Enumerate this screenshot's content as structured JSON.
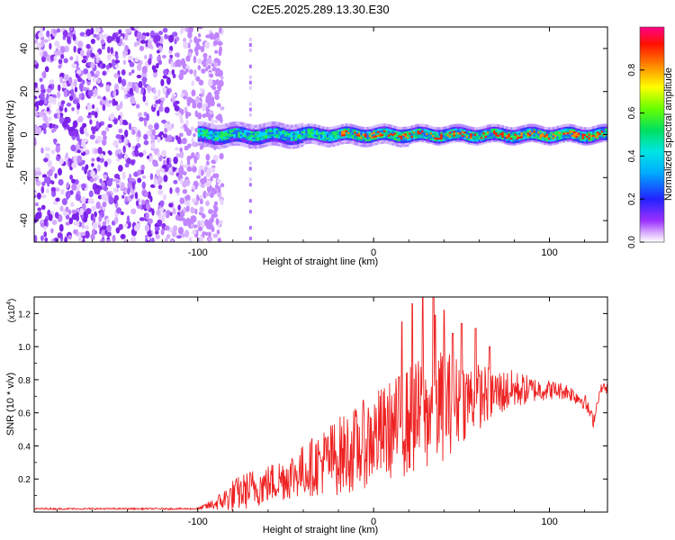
{
  "title": "C2E5.2025.289.13.30.E30",
  "chart_data": [
    {
      "type": "heatmap",
      "xlabel": "Height of straight line (km)",
      "ylabel": "Frequency (Hz)",
      "xlim": [
        -193,
        133
      ],
      "ylim": [
        -50,
        50
      ],
      "xticks": [
        -100,
        0,
        100
      ],
      "xtick_labels": [
        "-100",
        "0",
        "100"
      ],
      "yticks": [
        -40,
        -20,
        0,
        20,
        40
      ],
      "ytick_labels": [
        "-40",
        "-20",
        "0",
        "20",
        "40"
      ],
      "colorbar": {
        "label": "Normalized spectral amplitude",
        "range": [
          0,
          1
        ],
        "ticks": [
          0.0,
          0.2,
          0.4,
          0.6,
          0.8
        ],
        "tick_labels": [
          "0.0",
          "0.2",
          "0.4",
          "0.6",
          "0.8"
        ],
        "colormap": "rainbow"
      },
      "noise_region_km": [
        -193,
        -90
      ],
      "band_start_km": -100,
      "band_center_hz": 0,
      "band_halfwidth_hz": 4,
      "vertical_stripe_km": -70
    },
    {
      "type": "line",
      "xlabel": "Height of straight line (km)",
      "ylabel": "SNR (10 * v/v)",
      "multiplier_label": "(x10",
      "multiplier_exp": "4",
      "multiplier_close": ")",
      "xlim": [
        -193,
        133
      ],
      "ylim": [
        0,
        1.3
      ],
      "xticks": [
        -100,
        0,
        100
      ],
      "xtick_labels": [
        "-100",
        "0",
        "100"
      ],
      "yticks": [
        0.2,
        0.4,
        0.6,
        0.8,
        1.0,
        1.2
      ],
      "ytick_labels": [
        "0.2",
        "0.4",
        "0.6",
        "0.8",
        "1.0",
        "1.2"
      ],
      "series": [
        {
          "name": "SNR",
          "color": "#ee2222",
          "envelope_x": [
            -193,
            -100,
            -90,
            -80,
            -70,
            -60,
            -50,
            -40,
            -30,
            -20,
            -10,
            0,
            10,
            20,
            30,
            40,
            50,
            60,
            70,
            80,
            90,
            100,
            110,
            120,
            125,
            128,
            130,
            133
          ],
          "envelope_mean": [
            0.02,
            0.02,
            0.05,
            0.1,
            0.14,
            0.17,
            0.21,
            0.25,
            0.3,
            0.34,
            0.38,
            0.45,
            0.5,
            0.55,
            0.6,
            0.65,
            0.68,
            0.7,
            0.72,
            0.74,
            0.74,
            0.74,
            0.73,
            0.67,
            0.55,
            0.7,
            0.76,
            0.74
          ],
          "envelope_spread": [
            0.005,
            0.005,
            0.04,
            0.1,
            0.12,
            0.12,
            0.14,
            0.16,
            0.2,
            0.24,
            0.26,
            0.28,
            0.3,
            0.34,
            0.36,
            0.34,
            0.26,
            0.2,
            0.15,
            0.12,
            0.08,
            0.06,
            0.05,
            0.05,
            0.04,
            0.03,
            0.03,
            0.03
          ],
          "peaks": [
            [
              22,
              1.26
            ],
            [
              28,
              1.3
            ],
            [
              34,
              1.31
            ],
            [
              40,
              1.22
            ],
            [
              50,
              1.14
            ],
            [
              35,
              1.19
            ],
            [
              58,
              1.11
            ],
            [
              16,
              1.15
            ],
            [
              66,
              1.0
            ],
            [
              45,
              1.08
            ]
          ]
        }
      ]
    }
  ]
}
